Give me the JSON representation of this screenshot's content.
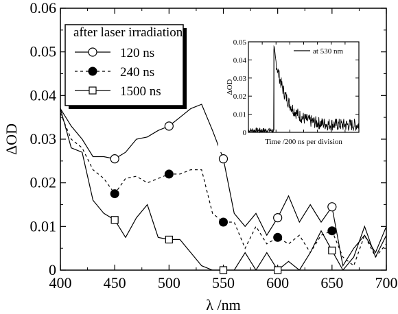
{
  "chart_data": [
    {
      "type": "line",
      "xlabel": "λ /nm",
      "ylabel": "ΔOD",
      "xlim": [
        400,
        700
      ],
      "ylim": [
        0,
        0.06
      ],
      "xticks": [
        "400",
        "450",
        "500",
        "550",
        "600",
        "650",
        "700"
      ],
      "yticks": [
        "0",
        "0.01",
        "0.02",
        "0.03",
        "0.04",
        "0.05",
        "0.06"
      ],
      "legend_title": "after laser irradiation",
      "legend_position": "top-left",
      "series": [
        {
          "name": "120 ns",
          "style": "solid",
          "marker": "open-circle",
          "x": [
            400,
            410,
            420,
            430,
            440,
            450,
            460,
            470,
            480,
            490,
            500,
            510,
            520,
            530,
            540,
            550,
            560,
            570,
            580,
            590,
            600,
            610,
            620,
            630,
            640,
            650,
            660,
            670,
            680,
            690,
            700
          ],
          "y": [
            0.037,
            0.033,
            0.03,
            0.026,
            0.026,
            0.0255,
            0.027,
            0.03,
            0.0305,
            0.032,
            0.033,
            0.035,
            0.037,
            0.038,
            0.032,
            0.0255,
            0.013,
            0.01,
            0.013,
            0.008,
            0.012,
            0.017,
            0.011,
            0.015,
            0.011,
            0.0145,
            0.001,
            0.005,
            0.008,
            0.004,
            0.01
          ],
          "markers_x": [
            450,
            500,
            550,
            600,
            650
          ],
          "markers_y": [
            0.0255,
            0.033,
            0.0255,
            0.012,
            0.0145
          ]
        },
        {
          "name": "240 ns",
          "style": "dashed",
          "marker": "filled-circle",
          "x": [
            400,
            410,
            420,
            430,
            440,
            450,
            460,
            470,
            480,
            490,
            500,
            510,
            520,
            530,
            540,
            550,
            560,
            570,
            580,
            590,
            600,
            610,
            620,
            630,
            640,
            650,
            660,
            670,
            680,
            690,
            700
          ],
          "y": [
            0.036,
            0.03,
            0.028,
            0.023,
            0.021,
            0.0175,
            0.021,
            0.0215,
            0.02,
            0.021,
            0.022,
            0.022,
            0.023,
            0.023,
            0.013,
            0.011,
            0.011,
            0.005,
            0.01,
            0.006,
            0.0075,
            0.006,
            0.008,
            0.004,
            0.008,
            0.009,
            0.003,
            0.001,
            0.008,
            0.003,
            0.006
          ],
          "markers_x": [
            450,
            500,
            550,
            600,
            650
          ],
          "markers_y": [
            0.0175,
            0.022,
            0.011,
            0.0075,
            0.009
          ]
        },
        {
          "name": "1500 ns",
          "style": "solid",
          "marker": "open-square",
          "x": [
            400,
            410,
            420,
            430,
            440,
            450,
            460,
            470,
            480,
            490,
            500,
            510,
            520,
            530,
            540,
            550,
            560,
            570,
            580,
            590,
            600,
            610,
            620,
            630,
            640,
            650,
            660,
            670,
            680,
            690,
            700
          ],
          "y": [
            0.037,
            0.028,
            0.027,
            0.016,
            0.013,
            0.0115,
            0.0075,
            0.012,
            0.015,
            0.0075,
            0.007,
            0.007,
            0.004,
            0.001,
            0.0,
            0.0,
            0.0,
            0.004,
            0.0,
            0.004,
            0.0,
            0.002,
            0.0,
            0.004,
            0.009,
            0.0045,
            0.0,
            0.003,
            0.01,
            0.003,
            0.008
          ],
          "markers_x": [
            450,
            500,
            550,
            600,
            650
          ],
          "markers_y": [
            0.0115,
            0.007,
            0.0,
            0.0,
            0.0045
          ]
        }
      ]
    },
    {
      "type": "line",
      "subtype": "inset",
      "xlabel": "Time /200 ns per division",
      "ylabel": "ΔOD",
      "ylim": [
        0,
        0.05
      ],
      "yticks": [
        "0",
        "0.01",
        "0.02",
        "0.03",
        "0.04",
        "0.05"
      ],
      "legend": "at 530 nm",
      "legend_position": "top-right",
      "series": [
        {
          "name": "at 530 nm",
          "description_points_x": [
            0,
            0.5,
            1.0,
            1.5,
            2.0,
            2.5,
            3.0,
            3.5,
            4.0,
            4.5,
            5.0,
            5.5,
            6.0,
            6.5,
            7.0,
            7.5,
            8.0
          ],
          "x_units": "divisions",
          "y": [
            0.001,
            0.001,
            0.001,
            0.001,
            0.045,
            0.03,
            0.018,
            0.012,
            0.009,
            0.007,
            0.006,
            0.005,
            0.005,
            0.004,
            0.004,
            0.004,
            0.004
          ]
        }
      ]
    }
  ]
}
